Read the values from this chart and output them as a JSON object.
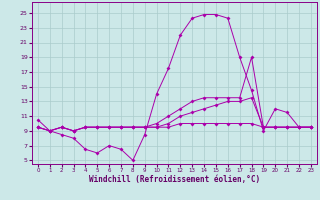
{
  "xlabel": "Windchill (Refroidissement éolien,°C)",
  "bg_color": "#cce8e8",
  "grid_color": "#aacccc",
  "line_color": "#aa00aa",
  "x_ticks": [
    0,
    1,
    2,
    3,
    4,
    5,
    6,
    7,
    8,
    9,
    10,
    11,
    12,
    13,
    14,
    15,
    16,
    17,
    18,
    19,
    20,
    21,
    22,
    23
  ],
  "y_ticks": [
    5,
    7,
    9,
    11,
    13,
    15,
    17,
    19,
    21,
    23,
    25
  ],
  "ylim": [
    4.5,
    26.5
  ],
  "xlim": [
    -0.5,
    23.5
  ],
  "series1_x": [
    0,
    1,
    2,
    3,
    4,
    5,
    6,
    7,
    8,
    9,
    10,
    11,
    12,
    13,
    14,
    15,
    16,
    17,
    18,
    19,
    20,
    21,
    22,
    23
  ],
  "series1_y": [
    10.5,
    9.0,
    8.5,
    8.0,
    6.5,
    6.0,
    7.0,
    6.5,
    5.0,
    8.5,
    14.0,
    17.5,
    22.0,
    24.3,
    24.8,
    24.8,
    24.3,
    19.0,
    14.5,
    9.0,
    12.0,
    11.5,
    9.5,
    9.5
  ],
  "series2_x": [
    0,
    1,
    2,
    3,
    4,
    5,
    6,
    7,
    8,
    9,
    10,
    11,
    12,
    13,
    14,
    15,
    16,
    17,
    18,
    19,
    20,
    21,
    22,
    23
  ],
  "series2_y": [
    9.5,
    9.0,
    9.5,
    9.0,
    9.5,
    9.5,
    9.5,
    9.5,
    9.5,
    9.5,
    10.0,
    11.0,
    12.0,
    13.0,
    13.5,
    13.5,
    13.5,
    13.5,
    19.0,
    9.5,
    9.5,
    9.5,
    9.5,
    9.5
  ],
  "series3_x": [
    0,
    1,
    2,
    3,
    4,
    5,
    6,
    7,
    8,
    9,
    10,
    11,
    12,
    13,
    14,
    15,
    16,
    17,
    18,
    19,
    20,
    21,
    22,
    23
  ],
  "series3_y": [
    9.5,
    9.0,
    9.5,
    9.0,
    9.5,
    9.5,
    9.5,
    9.5,
    9.5,
    9.5,
    9.5,
    10.0,
    11.0,
    11.5,
    12.0,
    12.5,
    13.0,
    13.0,
    13.5,
    9.5,
    9.5,
    9.5,
    9.5,
    9.5
  ],
  "series4_x": [
    0,
    1,
    2,
    3,
    4,
    5,
    6,
    7,
    8,
    9,
    10,
    11,
    12,
    13,
    14,
    15,
    16,
    17,
    18,
    19,
    20,
    21,
    22,
    23
  ],
  "series4_y": [
    9.5,
    9.0,
    9.5,
    9.0,
    9.5,
    9.5,
    9.5,
    9.5,
    9.5,
    9.5,
    9.5,
    9.5,
    10.0,
    10.0,
    10.0,
    10.0,
    10.0,
    10.0,
    10.0,
    9.5,
    9.5,
    9.5,
    9.5,
    9.5
  ]
}
